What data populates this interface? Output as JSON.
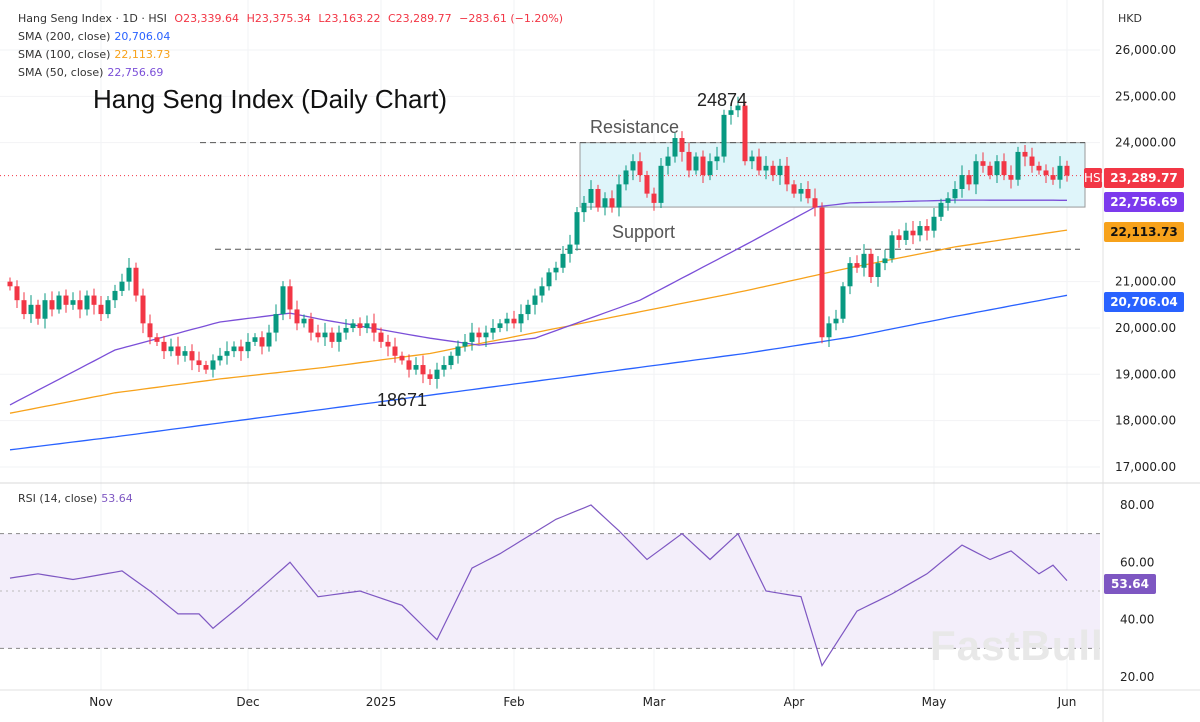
{
  "header": {
    "symbol": "Hang Seng Index · 1D · HSI",
    "open": "O23,339.64",
    "high": "H23,375.34",
    "low": "L23,163.22",
    "close": "C23,289.77",
    "change": "−283.61 (−1.20%)",
    "currency": "HKD"
  },
  "indicators": [
    {
      "label": "SMA (200, close)",
      "value": "20,706.04",
      "color": "#2962ff"
    },
    {
      "label": "SMA (100, close)",
      "value": "22,113.73",
      "color": "#f7a21b"
    },
    {
      "label": "SMA (50, close)",
      "value": "22,756.69",
      "color": "#7b4fd8"
    }
  ],
  "rsi_legend": {
    "label": "RSI (14, close)",
    "value": "53.64",
    "color": "#7e57c2"
  },
  "watermark": "FastBull",
  "badges": {
    "hsi_tag": "HSI",
    "price": "23,289.77",
    "sma50": "22,756.69",
    "sma100": "22,113.73",
    "sma200": "20,706.04"
  },
  "chart_data": {
    "type": "candlestick",
    "title": "Hang Seng Index (Daily Chart)",
    "price_ylim": [
      17000,
      26000
    ],
    "price_ticks": [
      "26,000.00",
      "25,000.00",
      "24,000.00",
      "21,000.00",
      "20,000.00",
      "19,000.00",
      "18,000.00",
      "17,000.00"
    ],
    "price_tick_values": [
      26000,
      25000,
      24000,
      21000,
      20000,
      19000,
      18000,
      17000
    ],
    "x_ticks": [
      {
        "label": "Nov",
        "bar": 13
      },
      {
        "label": "Dec",
        "bar": 34
      },
      {
        "label": "2025",
        "bar": 53
      },
      {
        "label": "Feb",
        "bar": 72
      },
      {
        "label": "Mar",
        "bar": 92
      },
      {
        "label": "Apr",
        "bar": 112
      },
      {
        "label": "May",
        "bar": 132
      },
      {
        "label": "Jun",
        "bar": 151
      }
    ],
    "closes": [
      20900,
      20600,
      20300,
      20500,
      20200,
      20600,
      20400,
      20700,
      20500,
      20600,
      20400,
      20700,
      20500,
      20300,
      20600,
      20800,
      21000,
      21300,
      20700,
      20100,
      19800,
      19700,
      19500,
      19600,
      19400,
      19500,
      19300,
      19200,
      19100,
      19300,
      19400,
      19500,
      19600,
      19500,
      19700,
      19800,
      19600,
      19900,
      20300,
      20900,
      20400,
      20100,
      20200,
      19900,
      19800,
      19900,
      19700,
      19900,
      20000,
      20100,
      20000,
      20100,
      19900,
      19700,
      19600,
      19400,
      19300,
      19100,
      19200,
      19000,
      18900,
      19100,
      19200,
      19400,
      19600,
      19700,
      19900,
      19800,
      19900,
      20000,
      20100,
      20200,
      20100,
      20300,
      20500,
      20700,
      20900,
      21200,
      21300,
      21600,
      21800,
      22500,
      22700,
      23000,
      22600,
      22800,
      22600,
      23100,
      23400,
      23600,
      23300,
      22900,
      22700,
      23500,
      23700,
      24100,
      23800,
      23400,
      23700,
      23300,
      23600,
      23700,
      24600,
      24700,
      24800,
      23600,
      23700,
      23400,
      23500,
      23300,
      23500,
      23100,
      22900,
      23000,
      22800,
      22600,
      19800,
      20100,
      20200,
      20900,
      21400,
      21300,
      21600,
      21100,
      21400,
      21500,
      22000,
      21900,
      22100,
      22000,
      22200,
      22100,
      22400,
      22700,
      22800,
      23000,
      23300,
      23100,
      23600,
      23500,
      23300,
      23600,
      23300,
      23200,
      23800,
      23700,
      23500,
      23400,
      23300,
      23200,
      23500,
      23289.77
    ],
    "sma200": [
      [
        0,
        17370
      ],
      [
        15,
        17650
      ],
      [
        30,
        17950
      ],
      [
        45,
        18250
      ],
      [
        60,
        18550
      ],
      [
        75,
        18850
      ],
      [
        90,
        19150
      ],
      [
        105,
        19450
      ],
      [
        120,
        19800
      ],
      [
        135,
        20250
      ],
      [
        151,
        20706.04
      ]
    ],
    "sma100": [
      [
        0,
        18160
      ],
      [
        15,
        18600
      ],
      [
        30,
        18900
      ],
      [
        45,
        19150
      ],
      [
        60,
        19450
      ],
      [
        75,
        19900
      ],
      [
        90,
        20350
      ],
      [
        105,
        20800
      ],
      [
        120,
        21300
      ],
      [
        135,
        21750
      ],
      [
        151,
        22113.73
      ]
    ],
    "sma50": [
      [
        0,
        18340
      ],
      [
        15,
        19525
      ],
      [
        30,
        20130
      ],
      [
        40,
        20320
      ],
      [
        45,
        20170
      ],
      [
        60,
        19780
      ],
      [
        67,
        19630
      ],
      [
        75,
        19780
      ],
      [
        90,
        20600
      ],
      [
        105,
        21790
      ],
      [
        115,
        22610
      ],
      [
        120,
        22700
      ],
      [
        135,
        22760
      ],
      [
        151,
        22756.69
      ]
    ],
    "levels": {
      "resistance": 24000,
      "support": 21700,
      "range_top": 24000,
      "range_bottom": 22610
    },
    "annotations": {
      "high": "24874",
      "low": "18671",
      "resistance": "Resistance",
      "support": "Support"
    },
    "rsi_ylim": [
      20,
      85
    ],
    "rsi_ticks": [
      "80.00",
      "60.00",
      "40.00",
      "20.00"
    ],
    "rsi_tick_values": [
      80,
      60,
      40,
      20
    ],
    "rsi_bands": [
      30,
      70
    ],
    "rsi": [
      [
        0,
        54.5
      ],
      [
        4,
        56
      ],
      [
        9,
        54
      ],
      [
        16,
        57
      ],
      [
        20,
        50
      ],
      [
        24,
        42
      ],
      [
        27,
        42
      ],
      [
        29,
        37
      ],
      [
        33,
        45
      ],
      [
        40,
        60
      ],
      [
        44,
        48
      ],
      [
        50,
        50
      ],
      [
        56,
        45
      ],
      [
        61,
        33
      ],
      [
        66,
        58
      ],
      [
        70,
        63
      ],
      [
        74,
        69
      ],
      [
        78,
        75
      ],
      [
        83,
        80
      ],
      [
        87,
        71
      ],
      [
        91,
        61
      ],
      [
        96,
        70
      ],
      [
        100,
        61
      ],
      [
        104,
        70
      ],
      [
        108,
        50
      ],
      [
        113,
        48
      ],
      [
        116,
        24
      ],
      [
        121,
        43
      ],
      [
        126,
        49
      ],
      [
        131,
        56
      ],
      [
        136,
        66
      ],
      [
        140,
        61
      ],
      [
        143,
        64
      ],
      [
        147,
        56
      ],
      [
        149,
        59
      ],
      [
        151,
        53.64
      ]
    ]
  }
}
